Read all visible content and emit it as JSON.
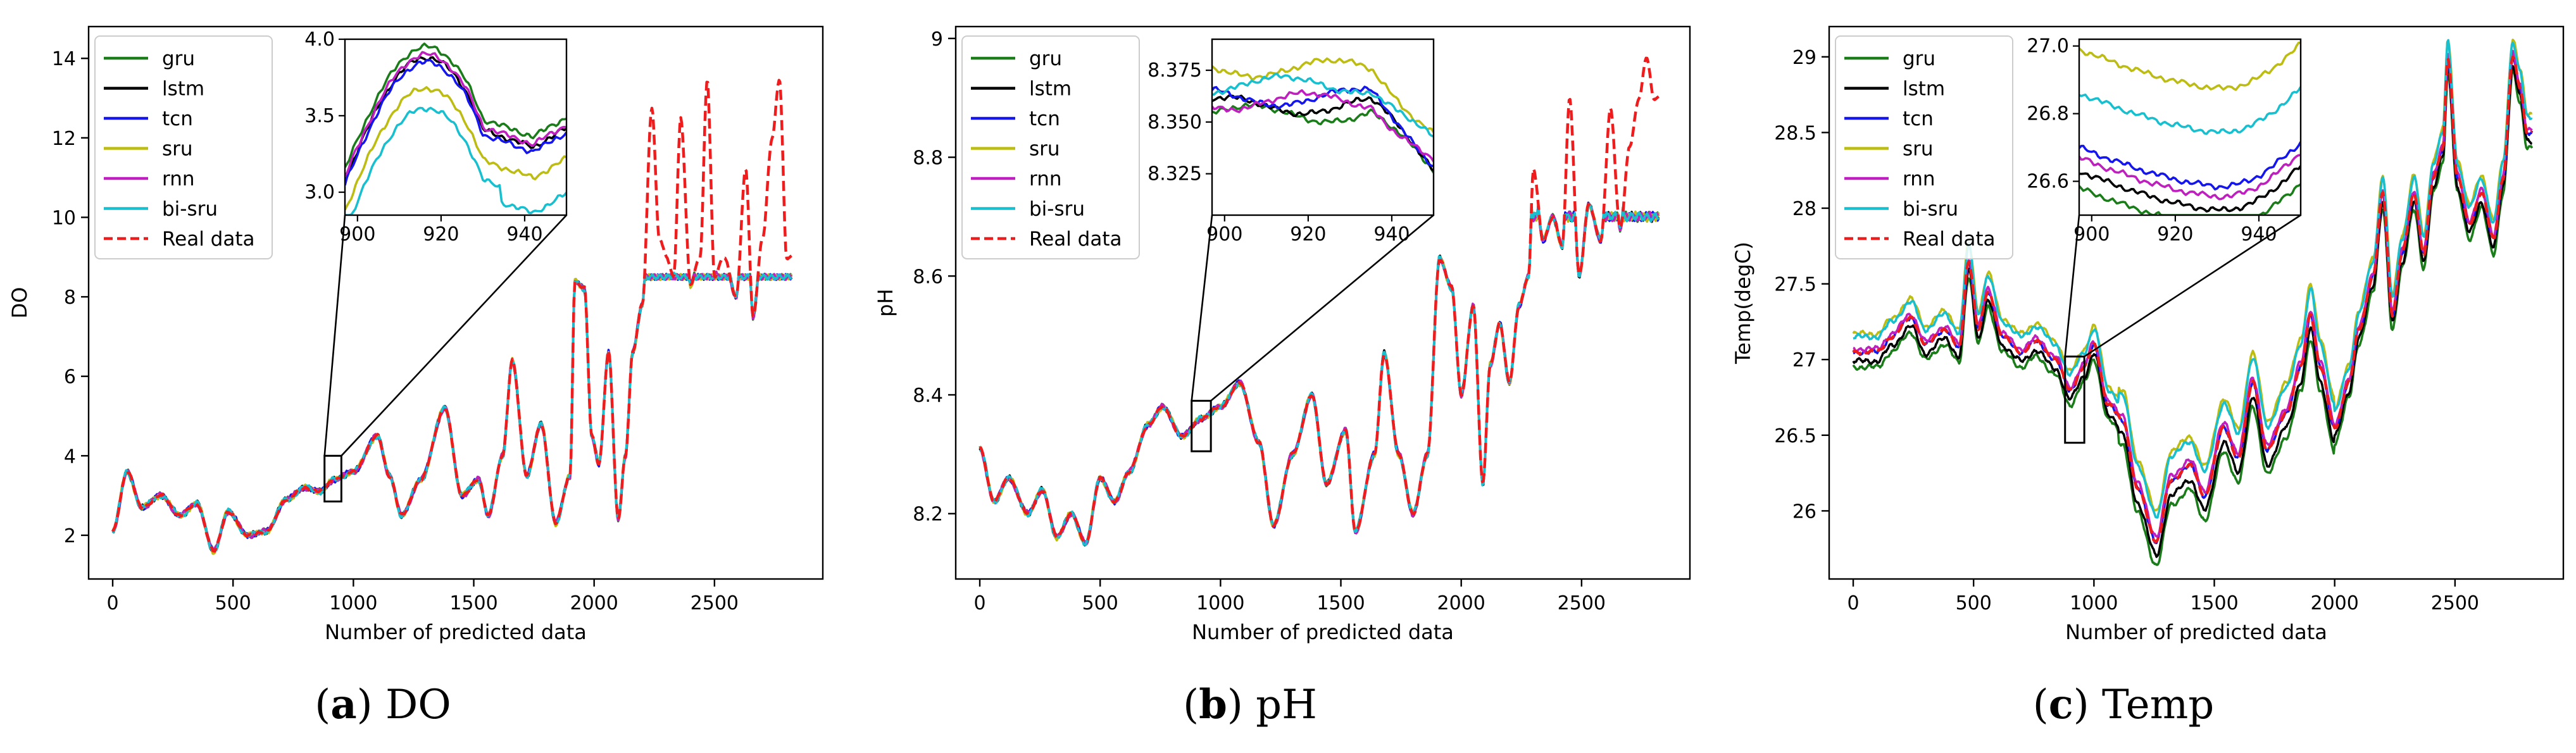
{
  "series_styles": [
    {
      "name": "gru",
      "color": "#1a7d1a",
      "dash": false
    },
    {
      "name": "lstm",
      "color": "#000000",
      "dash": false
    },
    {
      "name": "tcn",
      "color": "#1515ee",
      "dash": false
    },
    {
      "name": "sru",
      "color": "#bcbc12",
      "dash": false
    },
    {
      "name": "rnn",
      "color": "#bf1fbf",
      "dash": false
    },
    {
      "name": "bi-sru",
      "color": "#17bfcf",
      "dash": false
    },
    {
      "name": "Real data",
      "color": "#ee1c1c",
      "dash": true
    }
  ],
  "chart_data": [
    {
      "type": "line",
      "caption_label": "(a)",
      "caption_text": "DO",
      "xlabel": "Number of predicted data",
      "ylabel": "DO",
      "xlim": [
        -100,
        2950
      ],
      "ylim": [
        0.9,
        14.8
      ],
      "xticks": [
        0,
        500,
        1000,
        1500,
        2000,
        2500
      ],
      "yticks": [
        2,
        4,
        6,
        8,
        10,
        12,
        14
      ],
      "legend": [
        "gru",
        "lstm",
        "tcn",
        "sru",
        "rnn",
        "bi-sru",
        "Real data"
      ],
      "legend_position": "top-left",
      "real_data_knots": [
        [
          0,
          2.1
        ],
        [
          60,
          3.6
        ],
        [
          120,
          2.7
        ],
        [
          200,
          3.0
        ],
        [
          280,
          2.5
        ],
        [
          350,
          2.8
        ],
        [
          420,
          1.6
        ],
        [
          480,
          2.6
        ],
        [
          560,
          2.0
        ],
        [
          640,
          2.1
        ],
        [
          720,
          2.9
        ],
        [
          800,
          3.2
        ],
        [
          860,
          3.1
        ],
        [
          920,
          3.4
        ],
        [
          1000,
          3.6
        ],
        [
          1100,
          4.5
        ],
        [
          1150,
          3.5
        ],
        [
          1200,
          2.5
        ],
        [
          1280,
          3.4
        ],
        [
          1380,
          5.2
        ],
        [
          1450,
          3.0
        ],
        [
          1520,
          3.4
        ],
        [
          1560,
          2.5
        ],
        [
          1620,
          4.0
        ],
        [
          1660,
          6.4
        ],
        [
          1720,
          3.5
        ],
        [
          1780,
          4.8
        ],
        [
          1840,
          2.3
        ],
        [
          1900,
          3.5
        ],
        [
          1920,
          8.4
        ],
        [
          1960,
          8.2
        ],
        [
          1990,
          4.5
        ],
        [
          2020,
          3.8
        ],
        [
          2060,
          6.6
        ],
        [
          2100,
          2.4
        ],
        [
          2130,
          4.0
        ],
        [
          2160,
          6.6
        ],
        [
          2200,
          7.8
        ],
        [
          2240,
          12.8
        ],
        [
          2270,
          9.5
        ],
        [
          2300,
          9.0
        ],
        [
          2330,
          8.5
        ],
        [
          2360,
          12.5
        ],
        [
          2400,
          8.3
        ],
        [
          2440,
          9.0
        ],
        [
          2470,
          13.5
        ],
        [
          2500,
          8.5
        ],
        [
          2540,
          9.0
        ],
        [
          2590,
          8.0
        ],
        [
          2630,
          11.2
        ],
        [
          2660,
          7.5
        ],
        [
          2700,
          9.5
        ],
        [
          2740,
          12.0
        ],
        [
          2770,
          13.5
        ],
        [
          2800,
          9.0
        ]
      ],
      "inset": {
        "xlim": [
          897,
          950
        ],
        "ylim": [
          2.85,
          4.0
        ],
        "xticks": [
          900,
          920,
          940
        ],
        "yticks": [
          3.0,
          3.5,
          4.0
        ],
        "ytick_labels": [
          "3.0",
          "3.5",
          "4.0"
        ],
        "source_box": {
          "x": [
            880,
            950
          ],
          "y": [
            2.85,
            4.0
          ]
        }
      }
    },
    {
      "type": "line",
      "caption_label": "(b)",
      "caption_text": "pH",
      "xlabel": "Number of predicted data",
      "ylabel": "pH",
      "xlim": [
        -100,
        2950
      ],
      "ylim": [
        8.09,
        9.02
      ],
      "xticks": [
        0,
        500,
        1000,
        1500,
        2000,
        2500
      ],
      "yticks": [
        8.2,
        8.4,
        8.6,
        8.8,
        9.0
      ],
      "legend": [
        "gru",
        "lstm",
        "tcn",
        "sru",
        "rnn",
        "bi-sru",
        "Real data"
      ],
      "legend_position": "top-left",
      "real_data_knots": [
        [
          0,
          8.31
        ],
        [
          60,
          8.22
        ],
        [
          120,
          8.26
        ],
        [
          200,
          8.2
        ],
        [
          260,
          8.24
        ],
        [
          320,
          8.16
        ],
        [
          380,
          8.2
        ],
        [
          440,
          8.15
        ],
        [
          500,
          8.26
        ],
        [
          560,
          8.22
        ],
        [
          620,
          8.27
        ],
        [
          700,
          8.35
        ],
        [
          760,
          8.38
        ],
        [
          840,
          8.33
        ],
        [
          920,
          8.36
        ],
        [
          1000,
          8.38
        ],
        [
          1080,
          8.42
        ],
        [
          1160,
          8.32
        ],
        [
          1220,
          8.18
        ],
        [
          1300,
          8.3
        ],
        [
          1380,
          8.4
        ],
        [
          1440,
          8.25
        ],
        [
          1520,
          8.34
        ],
        [
          1560,
          8.17
        ],
        [
          1640,
          8.3
        ],
        [
          1680,
          8.47
        ],
        [
          1740,
          8.3
        ],
        [
          1800,
          8.2
        ],
        [
          1860,
          8.3
        ],
        [
          1910,
          8.63
        ],
        [
          1960,
          8.58
        ],
        [
          2000,
          8.4
        ],
        [
          2050,
          8.55
        ],
        [
          2090,
          8.25
        ],
        [
          2120,
          8.45
        ],
        [
          2160,
          8.52
        ],
        [
          2200,
          8.42
        ],
        [
          2240,
          8.55
        ],
        [
          2280,
          8.6
        ],
        [
          2300,
          8.78
        ],
        [
          2340,
          8.66
        ],
        [
          2380,
          8.7
        ],
        [
          2420,
          8.65
        ],
        [
          2450,
          8.9
        ],
        [
          2490,
          8.6
        ],
        [
          2530,
          8.72
        ],
        [
          2580,
          8.66
        ],
        [
          2620,
          8.88
        ],
        [
          2660,
          8.68
        ],
        [
          2700,
          8.82
        ],
        [
          2740,
          8.9
        ],
        [
          2770,
          8.97
        ],
        [
          2800,
          8.9
        ]
      ],
      "inset": {
        "xlim": [
          897,
          950
        ],
        "ylim": [
          8.305,
          8.39
        ],
        "xticks": [
          900,
          920,
          940
        ],
        "yticks": [
          8.325,
          8.35,
          8.375
        ],
        "ytick_labels": [
          "8.325",
          "8.350",
          "8.375"
        ],
        "source_box": {
          "x": [
            880,
            960
          ],
          "y": [
            8.305,
            8.39
          ]
        }
      }
    },
    {
      "type": "line",
      "caption_label": "(c)",
      "caption_text": "Temp",
      "xlabel": "Number of predicted data",
      "ylabel": "Temp(degC)",
      "xlim": [
        -100,
        2950
      ],
      "ylim": [
        25.55,
        29.2
      ],
      "xticks": [
        0,
        500,
        1000,
        1500,
        2000,
        2500
      ],
      "yticks": [
        26.0,
        26.5,
        27.0,
        27.5,
        28.0,
        28.5,
        29.0
      ],
      "legend": [
        "gru",
        "lstm",
        "tcn",
        "sru",
        "rnn",
        "bi-sru",
        "Real data"
      ],
      "legend_position": "top-left",
      "real_data_knots": [
        [
          0,
          27.05
        ],
        [
          100,
          27.05
        ],
        [
          160,
          27.15
        ],
        [
          240,
          27.28
        ],
        [
          300,
          27.1
        ],
        [
          380,
          27.2
        ],
        [
          440,
          27.08
        ],
        [
          480,
          27.65
        ],
        [
          520,
          27.2
        ],
        [
          560,
          27.45
        ],
        [
          620,
          27.15
        ],
        [
          700,
          27.05
        ],
        [
          760,
          27.12
        ],
        [
          840,
          27.0
        ],
        [
          900,
          26.8
        ],
        [
          960,
          26.95
        ],
        [
          1000,
          27.1
        ],
        [
          1060,
          26.7
        ],
        [
          1120,
          26.6
        ],
        [
          1180,
          26.15
        ],
        [
          1260,
          25.8
        ],
        [
          1320,
          26.2
        ],
        [
          1400,
          26.3
        ],
        [
          1460,
          26.1
        ],
        [
          1540,
          26.55
        ],
        [
          1600,
          26.35
        ],
        [
          1660,
          26.85
        ],
        [
          1720,
          26.4
        ],
        [
          1800,
          26.65
        ],
        [
          1860,
          26.95
        ],
        [
          1900,
          27.3
        ],
        [
          1940,
          26.95
        ],
        [
          2000,
          26.55
        ],
        [
          2060,
          26.85
        ],
        [
          2100,
          27.2
        ],
        [
          2160,
          27.55
        ],
        [
          2200,
          28.1
        ],
        [
          2240,
          27.3
        ],
        [
          2280,
          27.7
        ],
        [
          2330,
          28.1
        ],
        [
          2370,
          27.7
        ],
        [
          2410,
          28.2
        ],
        [
          2450,
          28.4
        ],
        [
          2470,
          29.0
        ],
        [
          2510,
          28.2
        ],
        [
          2560,
          27.9
        ],
        [
          2610,
          28.1
        ],
        [
          2660,
          27.8
        ],
        [
          2700,
          28.2
        ],
        [
          2740,
          29.0
        ],
        [
          2770,
          28.8
        ],
        [
          2800,
          28.5
        ]
      ],
      "inset": {
        "xlim": [
          897,
          950
        ],
        "ylim": [
          26.5,
          27.02
        ],
        "xticks": [
          900,
          920,
          940
        ],
        "yticks": [
          26.6,
          26.8,
          27.0
        ],
        "ytick_labels": [
          "26.6",
          "26.8",
          "27.0"
        ],
        "source_box": {
          "x": [
            880,
            960
          ],
          "y": [
            26.45,
            27.02
          ]
        }
      }
    }
  ]
}
